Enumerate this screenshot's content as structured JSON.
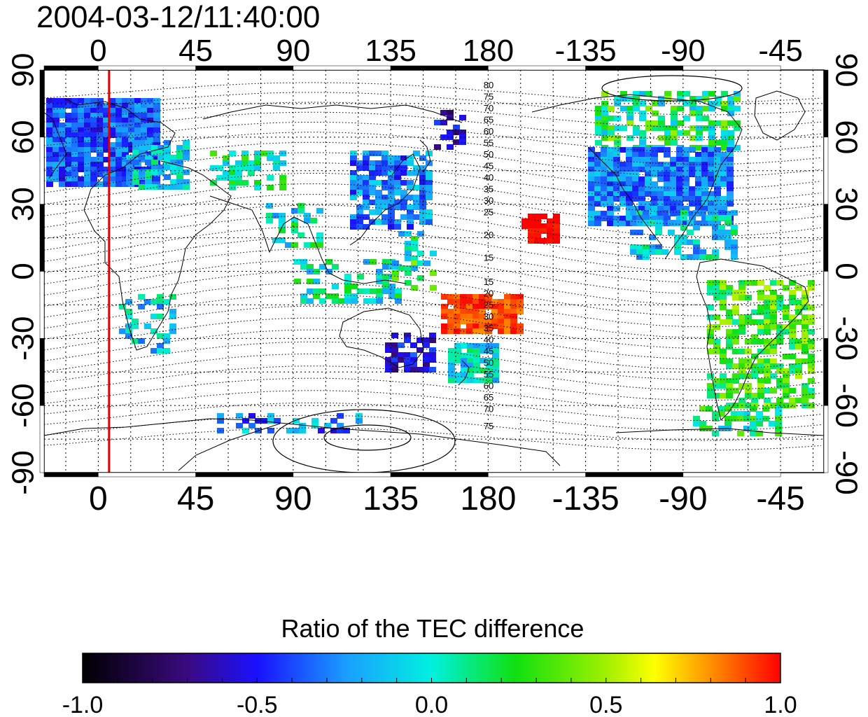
{
  "map": {
    "title": "2004-03-12/11:40:00",
    "longitude_ticks": [
      "0",
      "45",
      "90",
      "135",
      "180",
      "-135",
      "-90",
      "-45"
    ],
    "latitude_ticks": [
      "90",
      "60",
      "30",
      "0",
      "-30",
      "-60",
      "-90"
    ],
    "contour_labels_north": [
      "80",
      "75",
      "70",
      "65",
      "60",
      "55",
      "50",
      "45",
      "40",
      "35",
      "30",
      "25",
      "20",
      "15"
    ],
    "contour_labels_south": [
      "15",
      "20",
      "25",
      "30",
      "35",
      "40",
      "45",
      "50",
      "55",
      "60",
      "65",
      "70",
      "75"
    ],
    "marker_longitude": 5
  },
  "colorbar": {
    "title": "Ratio of the TEC difference",
    "tick_labels": [
      "-1.0",
      "-0.5",
      "0.0",
      "0.5",
      "1.0"
    ],
    "range": [
      -1.0,
      1.0
    ]
  },
  "colors": {
    "frame": "#000000",
    "marker_line": "#e00000",
    "coastline": "#000000",
    "grid": "#000000"
  }
}
